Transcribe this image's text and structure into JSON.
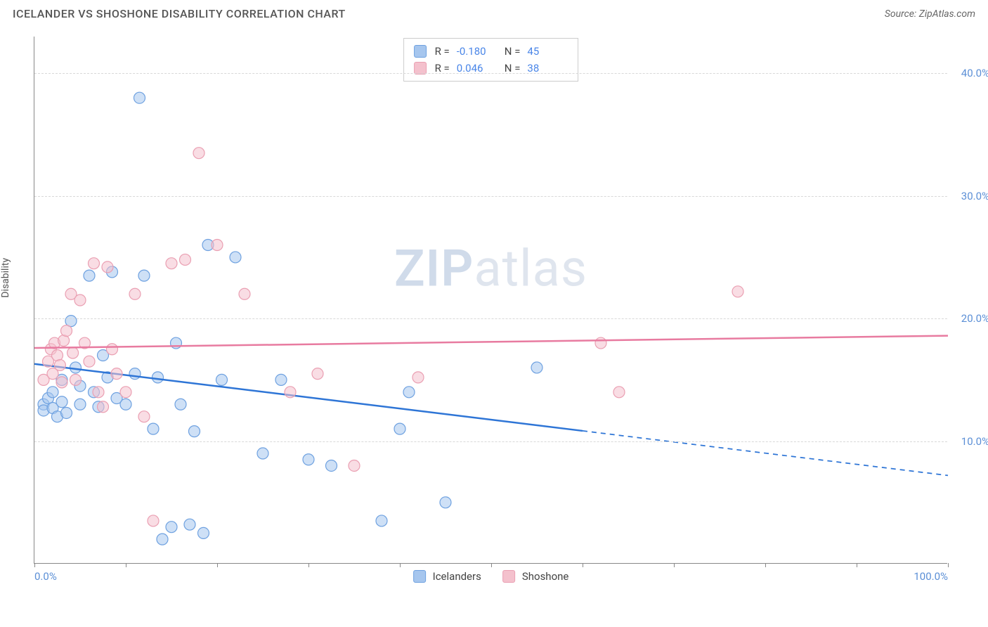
{
  "header": {
    "title": "ICELANDER VS SHOSHONE DISABILITY CORRELATION CHART",
    "source_prefix": "Source: ",
    "source_name": "ZipAtlas.com"
  },
  "chart": {
    "type": "scatter",
    "ylabel": "Disability",
    "background_color": "#ffffff",
    "grid_color": "#d8d8d8",
    "axis_color": "#888888",
    "tick_label_color": "#5b8fd6",
    "xlim": [
      0,
      100
    ],
    "ylim": [
      0,
      43
    ],
    "x_ticks": [
      0,
      10,
      20,
      30,
      40,
      50,
      60,
      70,
      80,
      90,
      100
    ],
    "x_tick_labels": {
      "0": "0.0%",
      "100": "100.0%"
    },
    "y_ticks": [
      10,
      20,
      30,
      40
    ],
    "y_tick_labels": {
      "10": "10.0%",
      "20": "20.0%",
      "30": "30.0%",
      "40": "40.0%"
    },
    "marker_radius": 8,
    "marker_opacity": 0.55,
    "line_width": 2.5,
    "watermark": "ZIPatlas",
    "watermark_bold": "ZIP",
    "watermark_rest": "atlas",
    "series": [
      {
        "id": "icelanders",
        "label": "Icelanders",
        "color_fill": "#a6c6ee",
        "color_stroke": "#6ea1e0",
        "line_color": "#2e75d6",
        "r_label": "R =",
        "r_value": "-0.180",
        "n_label": "N =",
        "n_value": "45",
        "regression": {
          "x1": 0,
          "y1": 16.3,
          "x2": 100,
          "y2": 7.2,
          "solid_until_x": 60
        },
        "points": [
          [
            1,
            13
          ],
          [
            1,
            12.5
          ],
          [
            1.5,
            13.5
          ],
          [
            2,
            12.7
          ],
          [
            2,
            14
          ],
          [
            2.5,
            12
          ],
          [
            3,
            13.2
          ],
          [
            3,
            15
          ],
          [
            3.5,
            12.3
          ],
          [
            4,
            19.8
          ],
          [
            4.5,
            16
          ],
          [
            5,
            14.5
          ],
          [
            5,
            13
          ],
          [
            6,
            23.5
          ],
          [
            6.5,
            14
          ],
          [
            7,
            12.8
          ],
          [
            7.5,
            17
          ],
          [
            8,
            15.2
          ],
          [
            8.5,
            23.8
          ],
          [
            9,
            13.5
          ],
          [
            10,
            13
          ],
          [
            11,
            15.5
          ],
          [
            11.5,
            38
          ],
          [
            12,
            23.5
          ],
          [
            13,
            11
          ],
          [
            13.5,
            15.2
          ],
          [
            14,
            2
          ],
          [
            15,
            3
          ],
          [
            15.5,
            18
          ],
          [
            16,
            13
          ],
          [
            17,
            3.2
          ],
          [
            17.5,
            10.8
          ],
          [
            18.5,
            2.5
          ],
          [
            19,
            26
          ],
          [
            20.5,
            15
          ],
          [
            22,
            25
          ],
          [
            25,
            9
          ],
          [
            27,
            15
          ],
          [
            30,
            8.5
          ],
          [
            32.5,
            8
          ],
          [
            38,
            3.5
          ],
          [
            40,
            11
          ],
          [
            41,
            14
          ],
          [
            45,
            5
          ],
          [
            55,
            16
          ]
        ]
      },
      {
        "id": "shoshone",
        "label": "Shoshone",
        "color_fill": "#f4c1cd",
        "color_stroke": "#ea9fb2",
        "line_color": "#e87ba0",
        "r_label": "R =",
        "r_value": "0.046",
        "n_label": "N =",
        "n_value": "38",
        "regression": {
          "x1": 0,
          "y1": 17.6,
          "x2": 100,
          "y2": 18.6,
          "solid_until_x": 100
        },
        "points": [
          [
            1,
            15
          ],
          [
            1.5,
            16.5
          ],
          [
            1.8,
            17.5
          ],
          [
            2,
            15.5
          ],
          [
            2.2,
            18
          ],
          [
            2.5,
            17
          ],
          [
            2.8,
            16.2
          ],
          [
            3,
            14.8
          ],
          [
            3.2,
            18.2
          ],
          [
            3.5,
            19
          ],
          [
            4,
            22
          ],
          [
            4.2,
            17.2
          ],
          [
            4.5,
            15
          ],
          [
            5,
            21.5
          ],
          [
            5.5,
            18
          ],
          [
            6,
            16.5
          ],
          [
            6.5,
            24.5
          ],
          [
            7,
            14
          ],
          [
            7.5,
            12.8
          ],
          [
            8,
            24.2
          ],
          [
            8.5,
            17.5
          ],
          [
            9,
            15.5
          ],
          [
            10,
            14
          ],
          [
            11,
            22
          ],
          [
            12,
            12
          ],
          [
            13,
            3.5
          ],
          [
            15,
            24.5
          ],
          [
            16.5,
            24.8
          ],
          [
            18,
            33.5
          ],
          [
            20,
            26
          ],
          [
            23,
            22
          ],
          [
            28,
            14
          ],
          [
            31,
            15.5
          ],
          [
            35,
            8
          ],
          [
            42,
            15.2
          ],
          [
            62,
            18
          ],
          [
            64,
            14
          ],
          [
            77,
            22.2
          ]
        ]
      }
    ],
    "statbox": {
      "border_color": "#cccccc",
      "background": "#ffffff"
    },
    "legend": {
      "items": [
        "icelanders",
        "shoshone"
      ]
    }
  }
}
